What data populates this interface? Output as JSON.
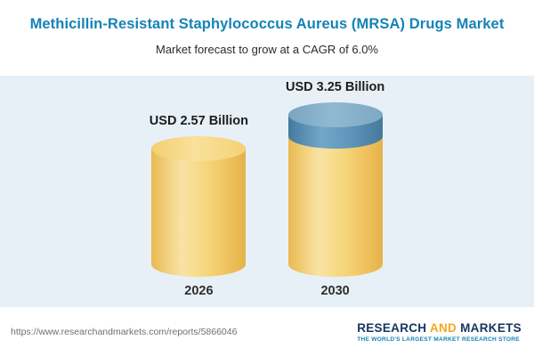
{
  "chart_data": {
    "type": "bar",
    "title": "Methicillin-Resistant Staphylococcus Aureus (MRSA) Drugs Market",
    "subtitle": "Market forecast to grow at a CAGR of 6.0%",
    "cagr": "6.0%",
    "unit": "USD Billion",
    "categories": [
      "2026",
      "2030"
    ],
    "values": [
      2.57,
      3.25
    ],
    "ylim": [
      0,
      3.5
    ],
    "grid": false,
    "legend": false,
    "bars": [
      {
        "year": "2026",
        "value": 2.57,
        "label": "USD 2.57 Billion",
        "segments": [
          {
            "value": 2.57,
            "color": "gold"
          }
        ]
      },
      {
        "year": "2030",
        "value": 3.25,
        "label": "USD 3.25 Billion",
        "segments": [
          {
            "value": 2.57,
            "color": "gold"
          },
          {
            "value": 0.68,
            "color": "blue"
          }
        ]
      }
    ]
  },
  "footer": {
    "url": "https://www.researchandmarkets.com/reports/5866046",
    "logo": {
      "word1": "RESEARCH",
      "word2": "AND",
      "word3": "MARKETS",
      "tagline": "THE WORLD'S LARGEST MARKET RESEARCH STORE"
    }
  },
  "colors": {
    "title_blue": "#1583b5",
    "panel_bg": "#e8f0f7",
    "gold_main": "#f3cd6d",
    "blue_main": "#4d86b0",
    "logo_navy": "#17355d",
    "logo_orange": "#f5a81c"
  }
}
